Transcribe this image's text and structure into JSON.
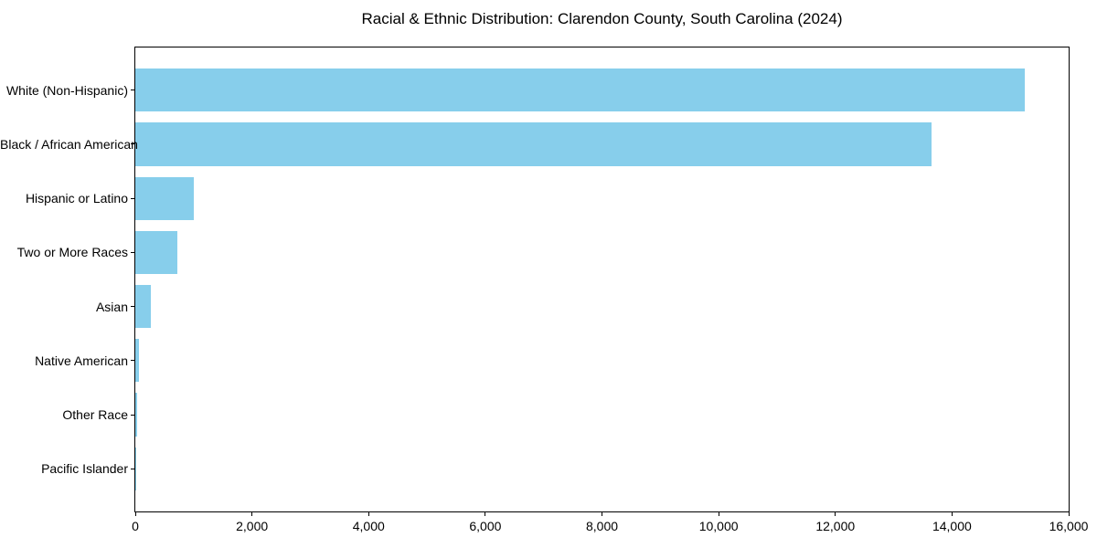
{
  "chart_data": {
    "type": "bar",
    "orientation": "horizontal",
    "title": "Racial & Ethnic Distribution: Clarendon County, South Carolina (2024)",
    "categories": [
      "White (Non-Hispanic)",
      "Black / African American",
      "Hispanic or Latino",
      "Two or More Races",
      "Asian",
      "Native American",
      "Other Race",
      "Pacific Islander"
    ],
    "values": [
      15250,
      13650,
      1000,
      725,
      270,
      55,
      25,
      8
    ],
    "xlabel": "",
    "ylabel": "",
    "xlim": [
      0,
      16000
    ],
    "x_ticks": [
      0,
      2000,
      4000,
      6000,
      8000,
      10000,
      12000,
      14000,
      16000
    ],
    "x_tick_labels": [
      "0",
      "2,000",
      "4,000",
      "6,000",
      "8,000",
      "10,000",
      "12,000",
      "14,000",
      "16,000"
    ],
    "bar_color": "#87CEEB",
    "axis_color": "#000000",
    "text_color": "#000000",
    "background_color": "#FFFFFF",
    "grid": false,
    "legend": "none"
  }
}
